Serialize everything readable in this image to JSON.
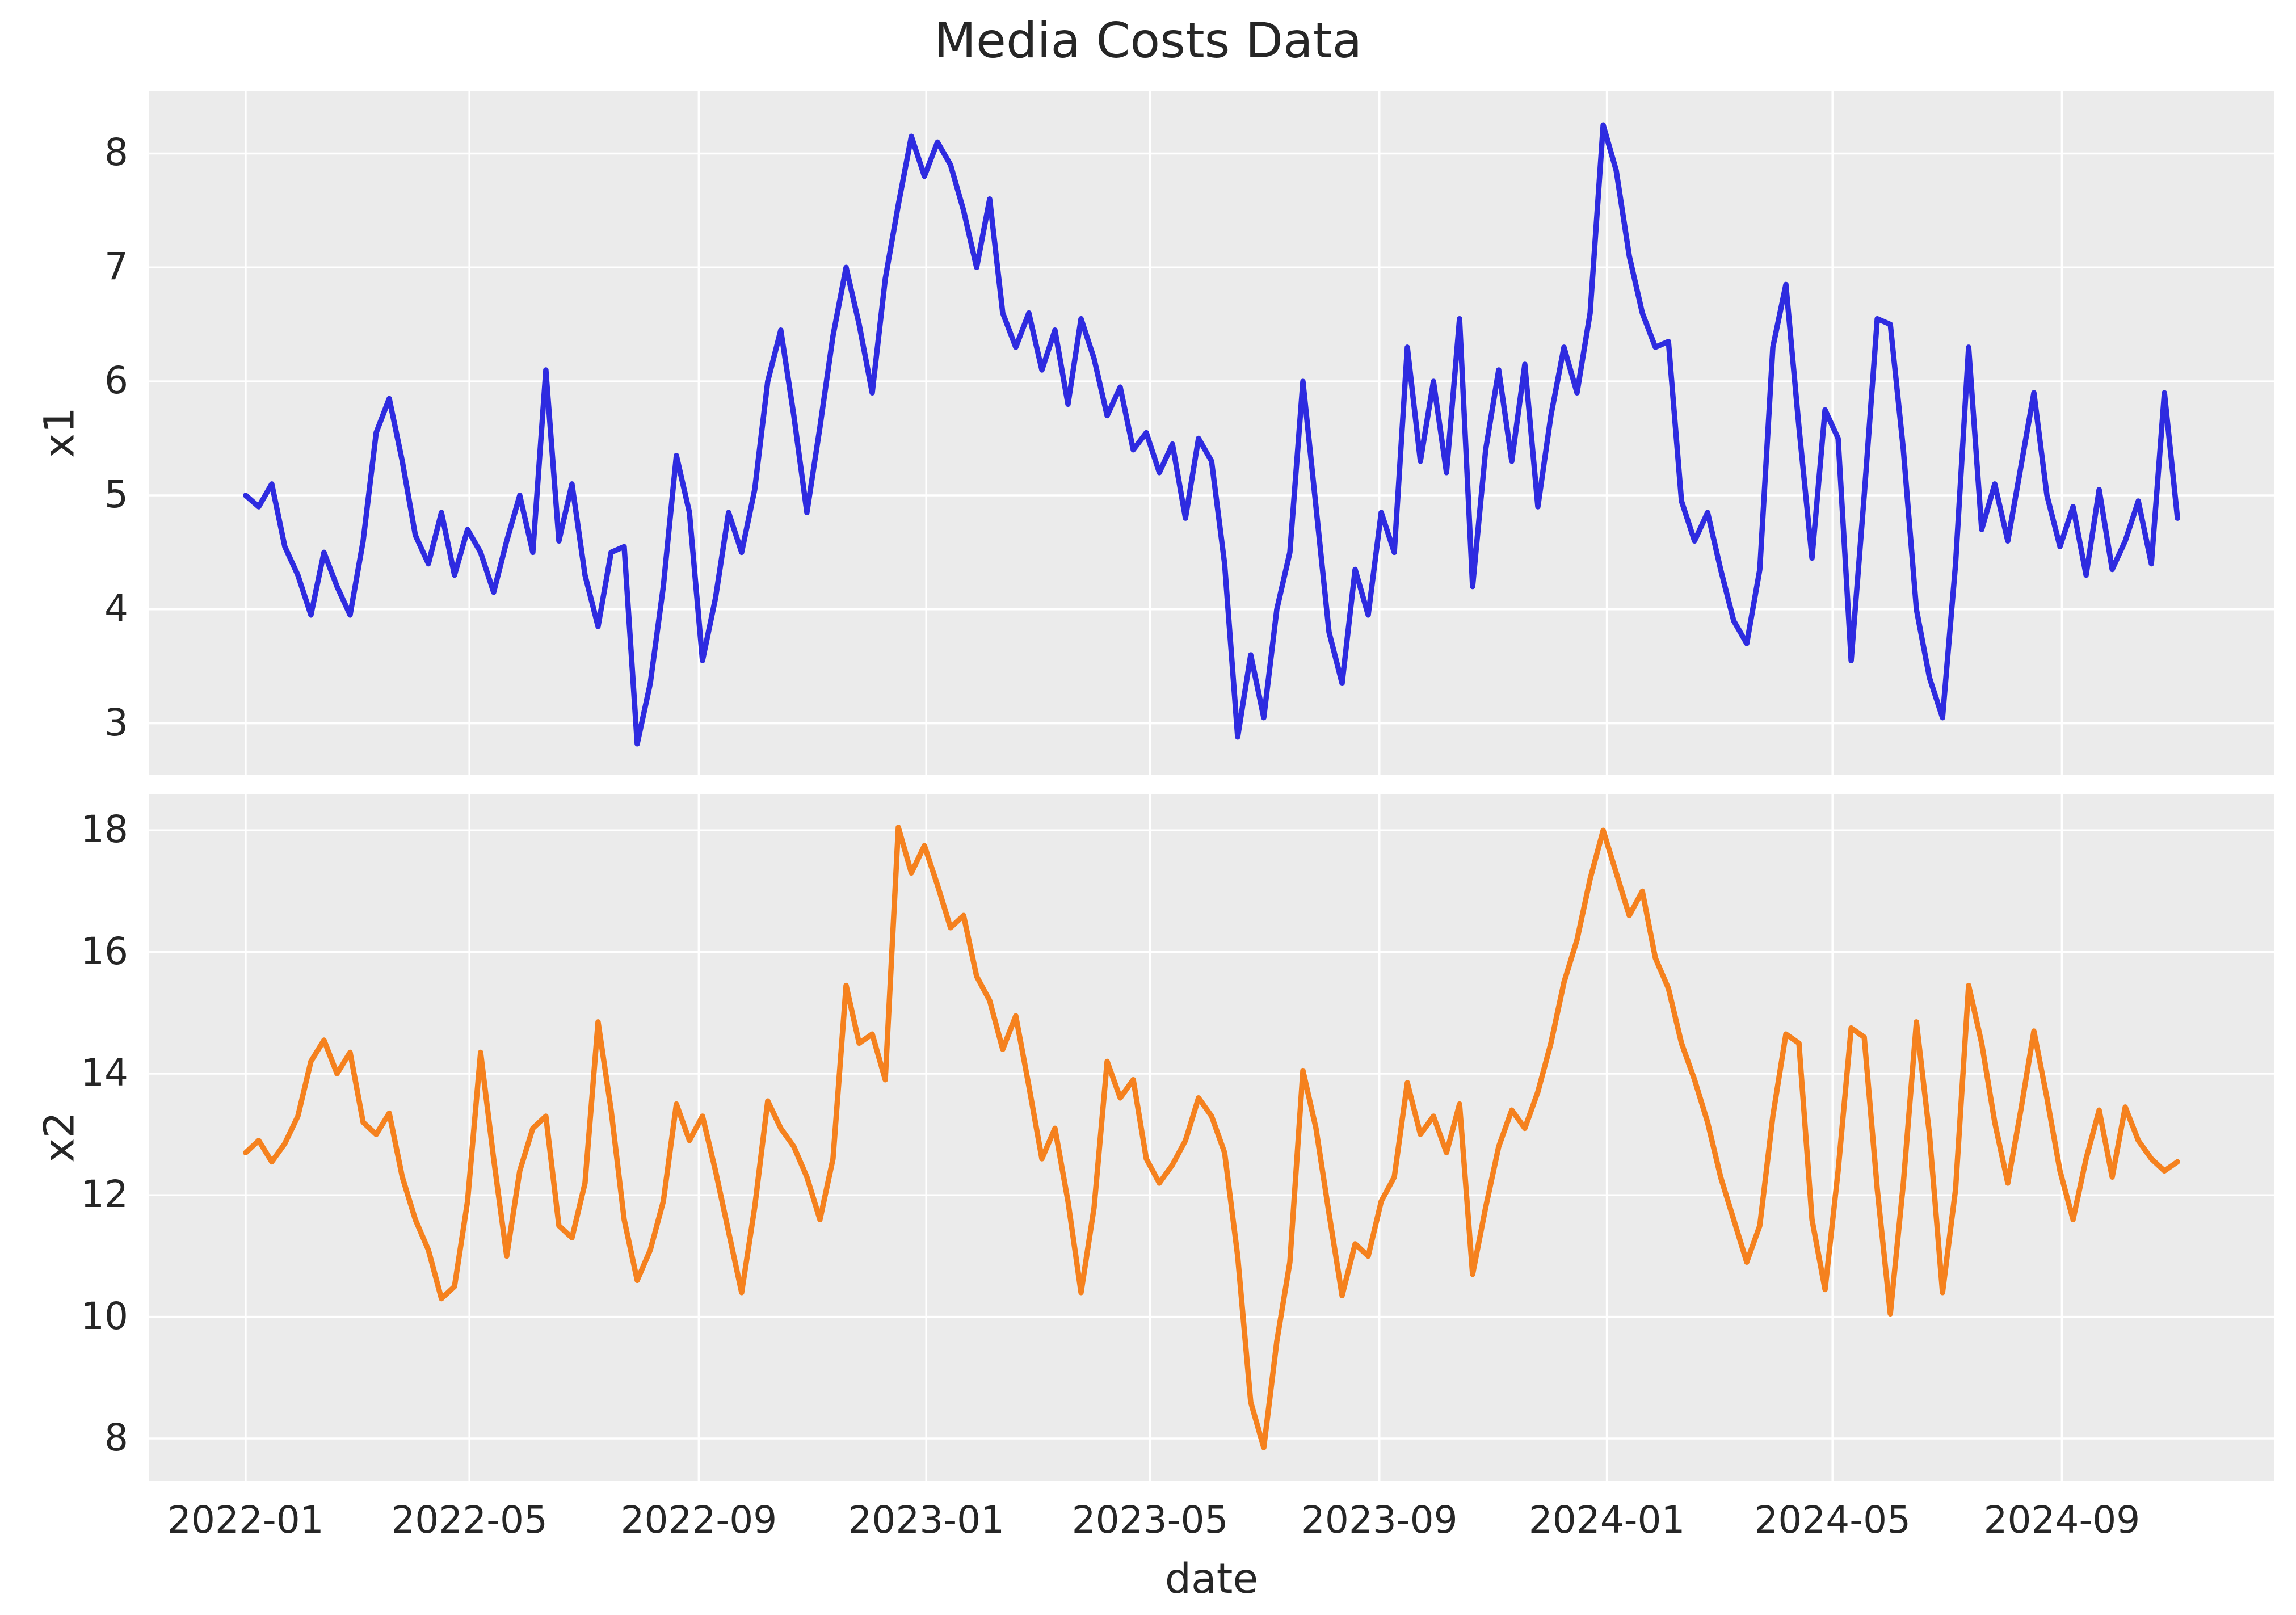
{
  "figure": {
    "background": "#ffffff",
    "axes_background": "#ebebeb",
    "grid_color": "#ffffff",
    "text_color": "#262626",
    "line_width": 9.5
  },
  "chart_data": {
    "type": "line",
    "title": "Media Costs Data",
    "xlabel": "date",
    "grid": true,
    "legend": "none",
    "x_axis": {
      "start_date": "2022-01-01",
      "step_days": 7,
      "n_points": 149,
      "xlim_days": [
        -52,
        1088
      ],
      "ticks": [
        {
          "label": "2022-01",
          "day": 0
        },
        {
          "label": "2022-05",
          "day": 120
        },
        {
          "label": "2022-09",
          "day": 243
        },
        {
          "label": "2023-01",
          "day": 365
        },
        {
          "label": "2023-05",
          "day": 485
        },
        {
          "label": "2023-09",
          "day": 608
        },
        {
          "label": "2024-01",
          "day": 730
        },
        {
          "label": "2024-05",
          "day": 851
        },
        {
          "label": "2024-09",
          "day": 974
        }
      ]
    },
    "panels": [
      {
        "name": "x1",
        "ylabel": "x1",
        "color": "#2e2be0",
        "ylim": [
          2.55,
          8.55
        ],
        "yticks": [
          3,
          4,
          5,
          6,
          7,
          8
        ],
        "values": [
          5.0,
          4.9,
          5.1,
          4.55,
          4.3,
          3.95,
          4.5,
          4.2,
          3.95,
          4.6,
          5.55,
          5.85,
          5.3,
          4.65,
          4.4,
          4.85,
          4.3,
          4.7,
          4.5,
          4.15,
          4.6,
          5.0,
          4.5,
          6.1,
          4.6,
          5.1,
          4.3,
          3.85,
          4.5,
          4.55,
          2.82,
          3.35,
          4.2,
          5.35,
          4.85,
          3.55,
          4.1,
          4.85,
          4.5,
          5.05,
          6.0,
          6.45,
          5.7,
          4.85,
          5.6,
          6.4,
          7.0,
          6.5,
          5.9,
          6.9,
          7.55,
          8.15,
          7.8,
          8.1,
          7.9,
          7.5,
          7.0,
          7.6,
          6.6,
          6.3,
          6.6,
          6.1,
          6.45,
          5.8,
          6.55,
          6.2,
          5.7,
          5.95,
          5.4,
          5.55,
          5.2,
          5.45,
          4.8,
          5.5,
          5.3,
          4.4,
          2.88,
          3.6,
          3.05,
          4.0,
          4.5,
          6.0,
          4.9,
          3.8,
          3.35,
          4.35,
          3.95,
          4.85,
          4.5,
          6.3,
          5.3,
          6.0,
          5.2,
          6.55,
          4.2,
          5.4,
          6.1,
          5.3,
          6.15,
          4.9,
          5.7,
          6.3,
          5.9,
          6.6,
          8.25,
          7.85,
          7.1,
          6.6,
          6.3,
          6.35,
          4.95,
          4.6,
          4.85,
          4.35,
          3.9,
          3.7,
          4.35,
          6.3,
          6.85,
          5.6,
          4.45,
          5.75,
          5.5,
          3.55,
          5.0,
          6.55,
          6.5,
          5.4,
          4.0,
          3.4,
          3.05,
          4.4,
          6.3,
          4.7,
          5.1,
          4.6,
          5.25,
          5.9,
          5.0,
          4.55,
          4.9,
          4.3,
          5.05,
          4.35,
          4.6,
          4.95,
          4.4,
          5.9,
          4.8
        ]
      },
      {
        "name": "x2",
        "ylabel": "x2",
        "color": "#f5811e",
        "ylim": [
          7.3,
          18.6
        ],
        "yticks": [
          8,
          10,
          12,
          14,
          16,
          18
        ],
        "values": [
          12.7,
          12.9,
          12.55,
          12.85,
          13.3,
          14.2,
          14.55,
          14.0,
          14.35,
          13.2,
          13.0,
          13.35,
          12.3,
          11.6,
          11.1,
          10.3,
          10.5,
          11.9,
          14.35,
          12.6,
          11.0,
          12.4,
          13.1,
          13.3,
          11.5,
          11.3,
          12.2,
          14.85,
          13.4,
          11.6,
          10.6,
          11.1,
          11.9,
          13.5,
          12.9,
          13.3,
          12.4,
          11.4,
          10.4,
          11.8,
          13.55,
          13.1,
          12.8,
          12.3,
          11.6,
          12.6,
          15.45,
          14.5,
          14.65,
          13.9,
          18.05,
          17.3,
          17.75,
          17.1,
          16.4,
          16.6,
          15.6,
          15.2,
          14.4,
          14.95,
          13.8,
          12.6,
          13.1,
          11.9,
          10.4,
          11.8,
          14.2,
          13.6,
          13.9,
          12.6,
          12.2,
          12.5,
          12.9,
          13.6,
          13.3,
          12.7,
          11.0,
          8.6,
          7.85,
          9.6,
          10.9,
          14.05,
          13.1,
          11.7,
          10.35,
          11.2,
          11.0,
          11.9,
          12.3,
          13.85,
          13.0,
          13.3,
          12.7,
          13.5,
          10.7,
          11.8,
          12.8,
          13.4,
          13.1,
          13.7,
          14.5,
          15.5,
          16.2,
          17.2,
          18.0,
          17.3,
          16.6,
          17.0,
          15.9,
          15.4,
          14.5,
          13.9,
          13.2,
          12.3,
          11.6,
          10.9,
          11.5,
          13.3,
          14.65,
          14.5,
          11.6,
          10.45,
          12.4,
          14.75,
          14.6,
          12.1,
          10.05,
          12.2,
          14.85,
          13.0,
          10.4,
          12.1,
          15.45,
          14.5,
          13.2,
          12.2,
          13.4,
          14.7,
          13.6,
          12.4,
          11.6,
          12.6,
          13.4,
          12.3,
          13.45,
          12.9,
          12.6,
          12.4,
          12.55
        ]
      }
    ]
  }
}
